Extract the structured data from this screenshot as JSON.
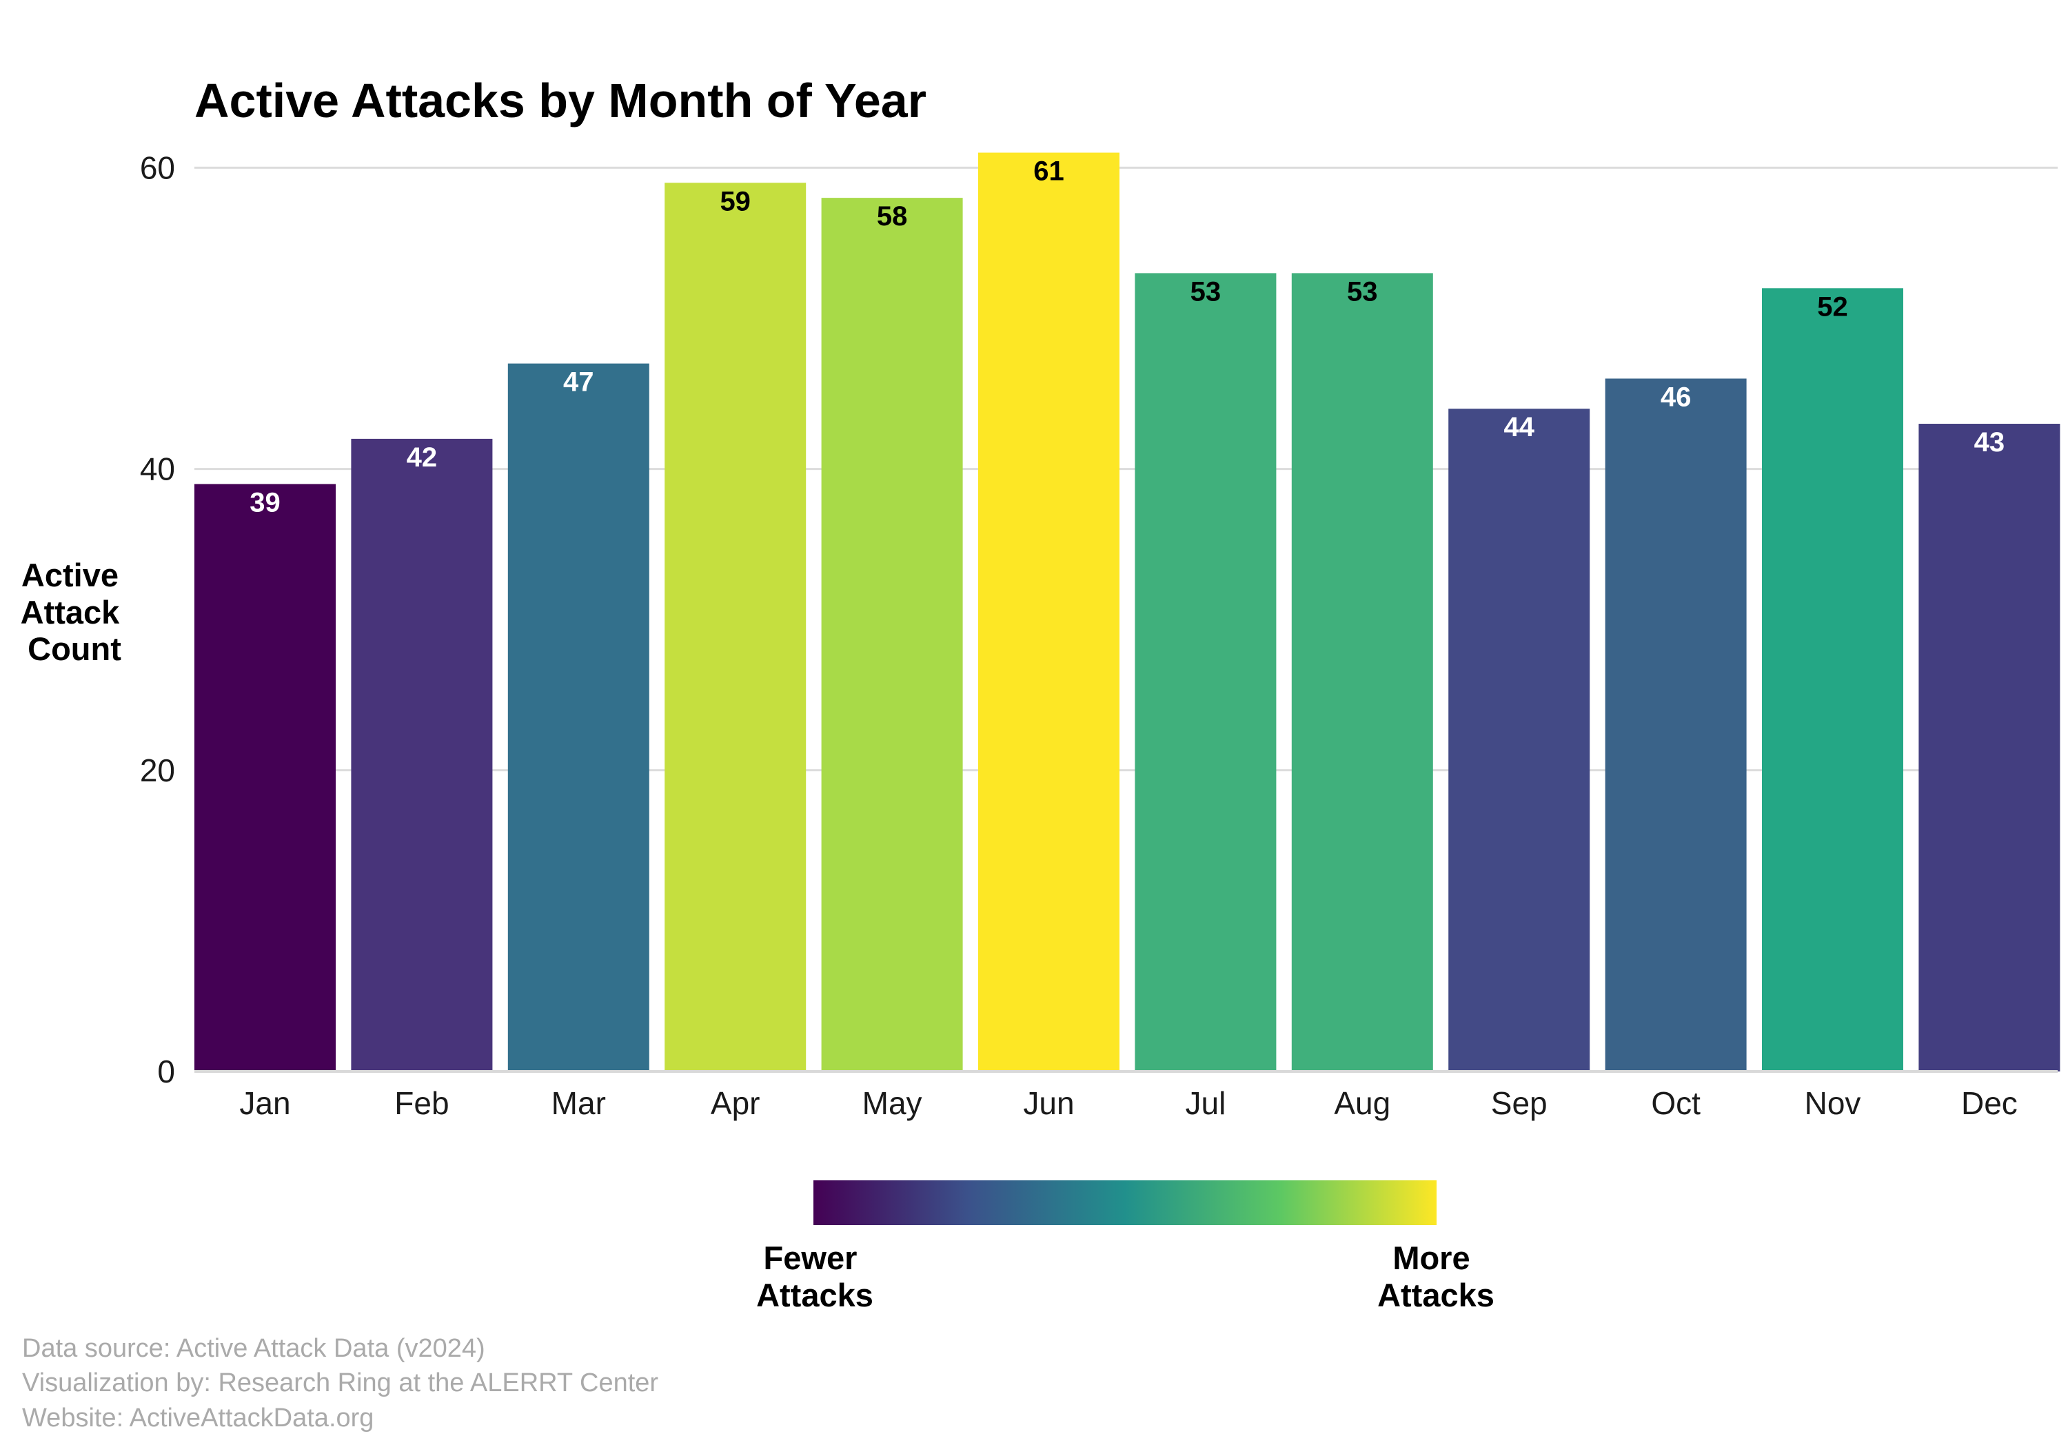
{
  "chart_data": {
    "type": "bar",
    "title": "Active Attacks by Month of Year",
    "ylabel_lines": [
      "Active",
      "Attack",
      "Count"
    ],
    "xlabel": "",
    "categories": [
      "Jan",
      "Feb",
      "Mar",
      "Apr",
      "May",
      "Jun",
      "Jul",
      "Aug",
      "Sep",
      "Oct",
      "Nov",
      "Dec"
    ],
    "values": [
      39,
      42,
      47,
      59,
      58,
      61,
      53,
      53,
      44,
      46,
      52,
      43
    ],
    "bar_colors": [
      "#440154",
      "#48347A",
      "#33708C",
      "#C5DF3F",
      "#A8DA48",
      "#FDE725",
      "#40B07C",
      "#40B07C",
      "#434A86",
      "#3A6389",
      "#24A785",
      "#433E80"
    ],
    "label_colors": [
      "#ffffff",
      "#ffffff",
      "#ffffff",
      "#000000",
      "#000000",
      "#000000",
      "#000000",
      "#000000",
      "#ffffff",
      "#ffffff",
      "#000000",
      "#ffffff"
    ],
    "ylim": [
      0,
      62
    ],
    "yticks": [
      0,
      20,
      40,
      60
    ],
    "grid": true,
    "legend": {
      "type": "colorbar",
      "placement": "bottom-center",
      "low_label_lines": [
        "Fewer",
        "Attacks"
      ],
      "high_label_lines": [
        "More",
        "Attacks"
      ],
      "gradient_colors": [
        "#440154",
        "#3B528B",
        "#21908C",
        "#5DC863",
        "#FDE725"
      ]
    }
  },
  "caption": {
    "line1": "Data source: Active Attack Data (v2024)",
    "line2": "Visualization by: Research Ring at the ALERRT Center",
    "line3": "Website: ActiveAttackData.org"
  }
}
